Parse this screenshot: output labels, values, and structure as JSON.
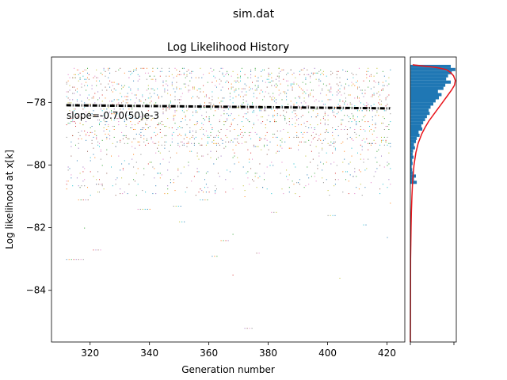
{
  "figure": {
    "suptitle": "sim.dat"
  },
  "chart_data": [
    {
      "type": "scatter",
      "title": "Log Likelihood History",
      "xlabel": "Generation number",
      "ylabel": "Log likelihood at x[k]",
      "xlim": [
        307,
        426
      ],
      "ylim": [
        -85.65,
        -76.55
      ],
      "xticks": [
        320,
        340,
        360,
        380,
        400,
        420
      ],
      "yticks": [
        -84,
        -82,
        -80,
        -78
      ],
      "xtick_labels": [
        "320",
        "340",
        "360",
        "380",
        "400",
        "420"
      ],
      "ytick_labels": [
        "−84",
        "−82",
        "−80",
        "−78"
      ],
      "grid": false,
      "annotation": "slope=-0.70(50)e-3",
      "trend_line": {
        "x": [
          312,
          421
        ],
        "y": [
          -78.09,
          -78.19
        ],
        "style": "black dash-dot",
        "points_per_generation": 2
      },
      "scatter": {
        "description_values": "many chains; dense band between -79.5 and -76.9, sparse tail down to -85.2",
        "x_range": [
          312,
          421
        ],
        "band": {
          "top": -76.88,
          "dense_bottom": -79.4,
          "sparse_bottom": -81.0
        },
        "outliers": [
          {
            "x": 312,
            "y": -83.0,
            "len": 8
          },
          {
            "x": 316,
            "y": -81.1,
            "len": 5
          },
          {
            "x": 318,
            "y": -82.0,
            "len": 1
          },
          {
            "x": 321,
            "y": -82.7,
            "len": 4
          },
          {
            "x": 322,
            "y": -80.6,
            "len": 3
          },
          {
            "x": 330,
            "y": -80.9,
            "len": 2
          },
          {
            "x": 336,
            "y": -81.4,
            "len": 6
          },
          {
            "x": 348,
            "y": -81.3,
            "len": 4
          },
          {
            "x": 350,
            "y": -81.8,
            "len": 3
          },
          {
            "x": 357,
            "y": -81.1,
            "len": 4
          },
          {
            "x": 361,
            "y": -82.9,
            "len": 3
          },
          {
            "x": 364,
            "y": -82.4,
            "len": 4
          },
          {
            "x": 368,
            "y": -82.2,
            "len": 1
          },
          {
            "x": 368,
            "y": -83.5,
            "len": 1
          },
          {
            "x": 372,
            "y": -85.2,
            "len": 4
          },
          {
            "x": 376,
            "y": -82.8,
            "len": 2
          },
          {
            "x": 381,
            "y": -81.5,
            "len": 3
          },
          {
            "x": 400,
            "y": -81.6,
            "len": 4
          },
          {
            "x": 404,
            "y": -83.6,
            "len": 1
          },
          {
            "x": 412,
            "y": -81.9,
            "len": 2
          },
          {
            "x": 420,
            "y": -82.3,
            "len": 1
          },
          {
            "x": 421,
            "y": -81.2,
            "len": 1
          }
        ],
        "colors": [
          "#1f77b4",
          "#ff7f0e",
          "#2ca02c",
          "#d62728",
          "#9467bd",
          "#8c564b",
          "#e377c2",
          "#7f7f7f",
          "#bcbd22",
          "#17becf"
        ]
      }
    },
    {
      "type": "bar",
      "orientation": "horizontal",
      "xticks": 2,
      "bin_width": 0.1,
      "bins": [
        {
          "y": -76.85,
          "count": 0.88
        },
        {
          "y": -76.95,
          "count": 0.98
        },
        {
          "y": -77.05,
          "count": 0.9
        },
        {
          "y": -77.15,
          "count": 0.82
        },
        {
          "y": -77.25,
          "count": 0.78
        },
        {
          "y": -77.35,
          "count": 0.88
        },
        {
          "y": -77.45,
          "count": 0.76
        },
        {
          "y": -77.55,
          "count": 0.72
        },
        {
          "y": -77.65,
          "count": 0.6
        },
        {
          "y": -77.75,
          "count": 0.68
        },
        {
          "y": -77.85,
          "count": 0.62
        },
        {
          "y": -77.95,
          "count": 0.55
        },
        {
          "y": -78.05,
          "count": 0.5
        },
        {
          "y": -78.15,
          "count": 0.44
        },
        {
          "y": -78.25,
          "count": 0.4
        },
        {
          "y": -78.35,
          "count": 0.42
        },
        {
          "y": -78.45,
          "count": 0.36
        },
        {
          "y": -78.55,
          "count": 0.32
        },
        {
          "y": -78.65,
          "count": 0.28
        },
        {
          "y": -78.75,
          "count": 0.24
        },
        {
          "y": -78.85,
          "count": 0.26
        },
        {
          "y": -78.95,
          "count": 0.18
        },
        {
          "y": -79.05,
          "count": 0.2
        },
        {
          "y": -79.15,
          "count": 0.14
        },
        {
          "y": -79.25,
          "count": 0.12
        },
        {
          "y": -79.35,
          "count": 0.08
        },
        {
          "y": -79.45,
          "count": 0.1
        },
        {
          "y": -79.55,
          "count": 0.06
        },
        {
          "y": -79.65,
          "count": 0.05
        },
        {
          "y": -79.75,
          "count": 0.07
        },
        {
          "y": -79.85,
          "count": 0.04
        },
        {
          "y": -79.95,
          "count": 0.05
        },
        {
          "y": -80.05,
          "count": 0.03
        },
        {
          "y": -80.15,
          "count": 0.04
        },
        {
          "y": -80.25,
          "count": 0.05
        },
        {
          "y": -80.35,
          "count": 0.12
        },
        {
          "y": -80.45,
          "count": 0.08
        },
        {
          "y": -80.55,
          "count": 0.14
        }
      ],
      "fit_curve": {
        "color": "#e8141a",
        "points": [
          [
            -76.8,
            0.05
          ],
          [
            -76.88,
            0.55
          ],
          [
            -76.95,
            0.78
          ],
          [
            -77.05,
            0.88
          ],
          [
            -77.15,
            0.94
          ],
          [
            -77.3,
            0.98
          ],
          [
            -77.45,
            0.96
          ],
          [
            -77.6,
            0.9
          ],
          [
            -77.8,
            0.8
          ],
          [
            -78.0,
            0.7
          ],
          [
            -78.2,
            0.6
          ],
          [
            -78.4,
            0.5
          ],
          [
            -78.6,
            0.4
          ],
          [
            -78.8,
            0.32
          ],
          [
            -79.0,
            0.25
          ],
          [
            -79.3,
            0.17
          ],
          [
            -79.6,
            0.12
          ],
          [
            -80.0,
            0.08
          ],
          [
            -80.5,
            0.05
          ],
          [
            -81.0,
            0.035
          ],
          [
            -81.5,
            0.022
          ],
          [
            -82.0,
            0.015
          ],
          [
            -82.5,
            0.01
          ],
          [
            -83.0,
            0.006
          ],
          [
            -84.0,
            0.003
          ],
          [
            -85.0,
            0.001
          ],
          [
            -85.65,
            0.0
          ]
        ]
      },
      "bar_color": "#1f77b4",
      "ylim": [
        -85.65,
        -76.55
      ]
    }
  ]
}
